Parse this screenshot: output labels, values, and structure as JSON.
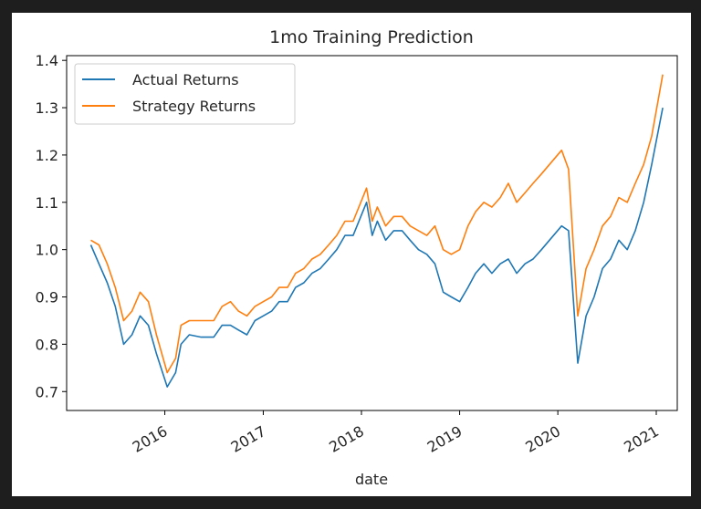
{
  "chart_data": {
    "type": "line",
    "title": "1mo Training Prediction",
    "xlabel": "date",
    "ylabel": "",
    "xlim": [
      "2015-01-01",
      "2021-03-20"
    ],
    "ylim": [
      0.66,
      1.41
    ],
    "yticks": [
      0.7,
      0.8,
      0.9,
      1.0,
      1.1,
      1.2,
      1.3,
      1.4
    ],
    "ytick_labels": [
      "0.7",
      "0.8",
      "0.9",
      "1.0",
      "1.1",
      "1.2",
      "1.3",
      "1.4"
    ],
    "xticks": [
      "2016-01-01",
      "2017-01-01",
      "2018-01-01",
      "2019-01-01",
      "2020-01-01",
      "2021-01-01"
    ],
    "xtick_labels": [
      "2016",
      "2017",
      "2018",
      "2019",
      "2020",
      "2021"
    ],
    "legend_position": "top-left",
    "grid": false,
    "series": [
      {
        "name": "Actual Returns",
        "color": "#1f77b4",
        "points": [
          [
            "2015-04-01",
            1.01
          ],
          [
            "2015-05-01",
            0.97
          ],
          [
            "2015-06-01",
            0.93
          ],
          [
            "2015-07-01",
            0.88
          ],
          [
            "2015-08-01",
            0.8
          ],
          [
            "2015-09-01",
            0.82
          ],
          [
            "2015-10-01",
            0.86
          ],
          [
            "2015-11-01",
            0.84
          ],
          [
            "2015-12-01",
            0.78
          ],
          [
            "2016-01-10",
            0.71
          ],
          [
            "2016-02-10",
            0.74
          ],
          [
            "2016-03-01",
            0.8
          ],
          [
            "2016-04-01",
            0.82
          ],
          [
            "2016-05-15",
            0.815
          ],
          [
            "2016-07-01",
            0.815
          ],
          [
            "2016-08-01",
            0.84
          ],
          [
            "2016-09-01",
            0.84
          ],
          [
            "2016-10-01",
            0.83
          ],
          [
            "2016-11-01",
            0.82
          ],
          [
            "2016-12-01",
            0.85
          ],
          [
            "2017-01-01",
            0.86
          ],
          [
            "2017-02-01",
            0.87
          ],
          [
            "2017-03-01",
            0.89
          ],
          [
            "2017-04-01",
            0.89
          ],
          [
            "2017-05-01",
            0.92
          ],
          [
            "2017-06-01",
            0.93
          ],
          [
            "2017-07-01",
            0.95
          ],
          [
            "2017-08-01",
            0.96
          ],
          [
            "2017-09-01",
            0.98
          ],
          [
            "2017-10-01",
            1.0
          ],
          [
            "2017-11-01",
            1.03
          ],
          [
            "2017-12-01",
            1.03
          ],
          [
            "2018-01-20",
            1.1
          ],
          [
            "2018-02-10",
            1.03
          ],
          [
            "2018-03-01",
            1.06
          ],
          [
            "2018-04-01",
            1.02
          ],
          [
            "2018-05-01",
            1.04
          ],
          [
            "2018-06-01",
            1.04
          ],
          [
            "2018-07-01",
            1.02
          ],
          [
            "2018-08-01",
            1.0
          ],
          [
            "2018-09-01",
            0.99
          ],
          [
            "2018-10-01",
            0.97
          ],
          [
            "2018-11-01",
            0.91
          ],
          [
            "2018-12-01",
            0.9
          ],
          [
            "2019-01-01",
            0.89
          ],
          [
            "2019-02-01",
            0.92
          ],
          [
            "2019-03-01",
            0.95
          ],
          [
            "2019-04-01",
            0.97
          ],
          [
            "2019-05-01",
            0.95
          ],
          [
            "2019-06-01",
            0.97
          ],
          [
            "2019-07-01",
            0.98
          ],
          [
            "2019-08-01",
            0.95
          ],
          [
            "2019-09-01",
            0.97
          ],
          [
            "2019-10-01",
            0.98
          ],
          [
            "2019-11-01",
            1.0
          ],
          [
            "2019-12-01",
            1.02
          ],
          [
            "2020-01-15",
            1.05
          ],
          [
            "2020-02-10",
            1.04
          ],
          [
            "2020-03-15",
            0.76
          ],
          [
            "2020-04-15",
            0.86
          ],
          [
            "2020-05-15",
            0.9
          ],
          [
            "2020-06-15",
            0.96
          ],
          [
            "2020-07-15",
            0.98
          ],
          [
            "2020-08-15",
            1.02
          ],
          [
            "2020-09-15",
            1.0
          ],
          [
            "2020-10-15",
            1.04
          ],
          [
            "2020-11-15",
            1.1
          ],
          [
            "2020-12-15",
            1.18
          ],
          [
            "2021-01-25",
            1.3
          ]
        ]
      },
      {
        "name": "Strategy Returns",
        "color": "#ff7f0e",
        "points": [
          [
            "2015-04-01",
            1.02
          ],
          [
            "2015-05-01",
            1.01
          ],
          [
            "2015-06-01",
            0.97
          ],
          [
            "2015-07-01",
            0.92
          ],
          [
            "2015-08-01",
            0.85
          ],
          [
            "2015-09-01",
            0.87
          ],
          [
            "2015-10-01",
            0.91
          ],
          [
            "2015-11-01",
            0.89
          ],
          [
            "2015-12-01",
            0.82
          ],
          [
            "2016-01-10",
            0.74
          ],
          [
            "2016-02-10",
            0.77
          ],
          [
            "2016-03-01",
            0.84
          ],
          [
            "2016-04-01",
            0.85
          ],
          [
            "2016-05-15",
            0.85
          ],
          [
            "2016-07-01",
            0.85
          ],
          [
            "2016-08-01",
            0.88
          ],
          [
            "2016-09-01",
            0.89
          ],
          [
            "2016-10-01",
            0.87
          ],
          [
            "2016-11-01",
            0.86
          ],
          [
            "2016-12-01",
            0.88
          ],
          [
            "2017-01-01",
            0.89
          ],
          [
            "2017-02-01",
            0.9
          ],
          [
            "2017-03-01",
            0.92
          ],
          [
            "2017-04-01",
            0.92
          ],
          [
            "2017-05-01",
            0.95
          ],
          [
            "2017-06-01",
            0.96
          ],
          [
            "2017-07-01",
            0.98
          ],
          [
            "2017-08-01",
            0.99
          ],
          [
            "2017-09-01",
            1.01
          ],
          [
            "2017-10-01",
            1.03
          ],
          [
            "2017-11-01",
            1.06
          ],
          [
            "2017-12-01",
            1.06
          ],
          [
            "2018-01-20",
            1.13
          ],
          [
            "2018-02-10",
            1.06
          ],
          [
            "2018-03-01",
            1.09
          ],
          [
            "2018-04-01",
            1.05
          ],
          [
            "2018-05-01",
            1.07
          ],
          [
            "2018-06-01",
            1.07
          ],
          [
            "2018-07-01",
            1.05
          ],
          [
            "2018-08-01",
            1.04
          ],
          [
            "2018-09-01",
            1.03
          ],
          [
            "2018-10-01",
            1.05
          ],
          [
            "2018-11-01",
            1.0
          ],
          [
            "2018-12-01",
            0.99
          ],
          [
            "2019-01-01",
            1.0
          ],
          [
            "2019-02-01",
            1.05
          ],
          [
            "2019-03-01",
            1.08
          ],
          [
            "2019-04-01",
            1.1
          ],
          [
            "2019-05-01",
            1.09
          ],
          [
            "2019-06-01",
            1.11
          ],
          [
            "2019-07-01",
            1.14
          ],
          [
            "2019-08-01",
            1.1
          ],
          [
            "2019-09-01",
            1.12
          ],
          [
            "2019-10-01",
            1.14
          ],
          [
            "2019-11-01",
            1.16
          ],
          [
            "2019-12-01",
            1.18
          ],
          [
            "2020-01-15",
            1.21
          ],
          [
            "2020-02-10",
            1.17
          ],
          [
            "2020-03-15",
            0.86
          ],
          [
            "2020-04-15",
            0.96
          ],
          [
            "2020-05-15",
            1.0
          ],
          [
            "2020-06-15",
            1.05
          ],
          [
            "2020-07-15",
            1.07
          ],
          [
            "2020-08-15",
            1.11
          ],
          [
            "2020-09-15",
            1.1
          ],
          [
            "2020-10-15",
            1.14
          ],
          [
            "2020-11-15",
            1.18
          ],
          [
            "2020-12-15",
            1.24
          ],
          [
            "2021-01-25",
            1.37
          ]
        ]
      }
    ]
  }
}
